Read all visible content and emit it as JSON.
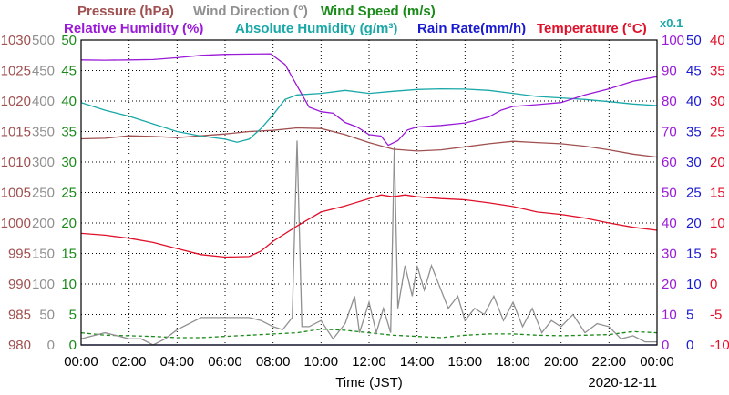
{
  "chart_data": {
    "type": "line",
    "titles": {
      "row1": [
        {
          "text": "Pressure (hPa)",
          "color": "#a05050"
        },
        {
          "text": "Wind Direction (°)",
          "color": "#909090"
        },
        {
          "text": "Wind Speed (m/s)",
          "color": "#1a8a1a"
        }
      ],
      "row2": [
        {
          "text": "Relative Humidity (%)",
          "color": "#9a1ad8"
        },
        {
          "text": "Absolute Humidity (g/m³)",
          "color": "#1aa8a8"
        },
        {
          "text": "Rain Rate(mm/h)",
          "color": "#1a1ad0"
        },
        {
          "text": "Temperature (°C)",
          "color": "#e0102a"
        }
      ],
      "multiplier": {
        "text": "x0.1",
        "color": "#1aa8a8"
      }
    },
    "xlabel": "Time (JST)",
    "date": "2020-12-11",
    "x_ticks": [
      "00:00",
      "02:00",
      "04:00",
      "06:00",
      "08:00",
      "10:00",
      "12:00",
      "14:00",
      "16:00",
      "18:00",
      "20:00",
      "22:00",
      "00:00"
    ],
    "axes": {
      "pressure": {
        "color": "#a05050",
        "range": [
          980,
          1030
        ],
        "ticks": [
          "1030",
          "1025",
          "1020",
          "1015",
          "1010",
          "1005",
          "1000",
          "995",
          "990",
          "985",
          "980"
        ]
      },
      "wind_direction": {
        "color": "#909090",
        "range": [
          0,
          500
        ],
        "ticks": [
          "500",
          "450",
          "400",
          "350",
          "300",
          "250",
          "200",
          "150",
          "100",
          "50",
          "0"
        ]
      },
      "wind_speed": {
        "color": "#1a8a1a",
        "range": [
          0,
          50
        ],
        "ticks": [
          "50",
          "45",
          "40",
          "35",
          "30",
          "25",
          "20",
          "15",
          "10",
          "5",
          "0"
        ]
      },
      "relative_humidity": {
        "color": "#9a1ad8",
        "range": [
          0,
          100
        ],
        "ticks": [
          "100",
          "90",
          "80",
          "70",
          "60",
          "50",
          "40",
          "30",
          "20",
          "10",
          "0"
        ]
      },
      "rain_rate": {
        "color": "#1a1ad0",
        "range": [
          0,
          50
        ],
        "ticks": [
          "50",
          "45",
          "40",
          "35",
          "30",
          "25",
          "20",
          "15",
          "10",
          "5",
          "0"
        ]
      },
      "temperature": {
        "color": "#e0102a",
        "range": [
          -10,
          40
        ],
        "ticks": [
          "40",
          "35",
          "30",
          "25",
          "20",
          "15",
          "10",
          "5",
          "0",
          "-5",
          "-10"
        ]
      }
    },
    "series": [
      {
        "name": "Pressure (hPa)",
        "axis": "pressure",
        "color": "#a05050",
        "points": [
          [
            0,
            1013.8
          ],
          [
            1,
            1013.9
          ],
          [
            2,
            1014.3
          ],
          [
            3,
            1014.2
          ],
          [
            4,
            1014.0
          ],
          [
            5,
            1014.3
          ],
          [
            6,
            1014.6
          ],
          [
            7,
            1015.0
          ],
          [
            8,
            1015.2
          ],
          [
            9,
            1015.6
          ],
          [
            10,
            1015.5
          ],
          [
            11,
            1014.5
          ],
          [
            12,
            1013.2
          ],
          [
            13,
            1012.1
          ],
          [
            14,
            1011.8
          ],
          [
            15,
            1012.0
          ],
          [
            16,
            1012.5
          ],
          [
            17,
            1013.0
          ],
          [
            18,
            1013.4
          ],
          [
            19,
            1013.2
          ],
          [
            20,
            1013.0
          ],
          [
            21,
            1012.6
          ],
          [
            22,
            1012.0
          ],
          [
            23,
            1011.3
          ],
          [
            24,
            1010.8
          ]
        ]
      },
      {
        "name": "Relative Humidity (%)",
        "axis": "relative_humidity",
        "color": "#9a1ad8",
        "points": [
          [
            0,
            93.5
          ],
          [
            1,
            93.4
          ],
          [
            2,
            93.5
          ],
          [
            3,
            93.6
          ],
          [
            4,
            94.2
          ],
          [
            5,
            95.0
          ],
          [
            6,
            95.3
          ],
          [
            7,
            95.4
          ],
          [
            7.9,
            95.5
          ],
          [
            8.5,
            92.0
          ],
          [
            9,
            85.0
          ],
          [
            9.5,
            78.0
          ],
          [
            10,
            76.5
          ],
          [
            10.5,
            76.0
          ],
          [
            11,
            73.0
          ],
          [
            11.5,
            71.5
          ],
          [
            12,
            69.0
          ],
          [
            12.5,
            68.5
          ],
          [
            12.8,
            65.5
          ],
          [
            13.2,
            67.0
          ],
          [
            13.6,
            70.5
          ],
          [
            14,
            71.5
          ],
          [
            15,
            72.0
          ],
          [
            16,
            72.8
          ],
          [
            17,
            74.8
          ],
          [
            17.5,
            77.0
          ],
          [
            18,
            78.2
          ],
          [
            19,
            78.8
          ],
          [
            20,
            79.5
          ],
          [
            21,
            82.0
          ],
          [
            22,
            84.0
          ],
          [
            23,
            86.5
          ],
          [
            24,
            88.0
          ]
        ]
      },
      {
        "name": "Absolute Humidity (g/m³)",
        "axis": "relative_humidity",
        "color": "#1aa8a8",
        "points": [
          [
            0,
            79.5
          ],
          [
            1,
            77.0
          ],
          [
            2,
            75.0
          ],
          [
            3,
            72.5
          ],
          [
            4,
            70.0
          ],
          [
            5,
            68.5
          ],
          [
            6,
            67.5
          ],
          [
            6.5,
            66.5
          ],
          [
            7,
            67.5
          ],
          [
            7.5,
            71.0
          ],
          [
            8,
            75.5
          ],
          [
            8.5,
            80.5
          ],
          [
            9,
            82.0
          ],
          [
            10,
            82.5
          ],
          [
            11,
            83.5
          ],
          [
            12,
            82.5
          ],
          [
            13,
            83.2
          ],
          [
            14,
            83.8
          ],
          [
            15,
            84.0
          ],
          [
            16,
            83.9
          ],
          [
            17,
            83.5
          ],
          [
            18,
            82.5
          ],
          [
            19,
            81.5
          ],
          [
            20,
            81.0
          ],
          [
            21,
            80.5
          ],
          [
            22,
            79.8
          ],
          [
            23,
            79.0
          ],
          [
            24,
            78.5
          ]
        ]
      },
      {
        "name": "Temperature (°C)",
        "axis": "temperature",
        "color": "#e0102a",
        "points": [
          [
            0,
            8.3
          ],
          [
            1,
            8.0
          ],
          [
            2,
            7.5
          ],
          [
            3,
            6.8
          ],
          [
            4,
            5.8
          ],
          [
            5,
            4.8
          ],
          [
            6,
            4.4
          ],
          [
            7,
            4.5
          ],
          [
            7.5,
            5.4
          ],
          [
            8,
            7.0
          ],
          [
            9,
            9.5
          ],
          [
            10,
            11.8
          ],
          [
            11,
            12.8
          ],
          [
            12,
            14.0
          ],
          [
            12.5,
            14.6
          ],
          [
            13,
            14.3
          ],
          [
            13.5,
            14.6
          ],
          [
            14,
            14.3
          ],
          [
            15,
            14.0
          ],
          [
            16,
            13.8
          ],
          [
            17,
            13.3
          ],
          [
            18,
            12.7
          ],
          [
            19,
            11.8
          ],
          [
            20,
            11.4
          ],
          [
            21,
            10.8
          ],
          [
            22,
            10.0
          ],
          [
            23,
            9.3
          ],
          [
            24,
            8.8
          ]
        ]
      },
      {
        "name": "Wind Direction (°)",
        "axis": "wind_direction",
        "color": "#909090",
        "points": [
          [
            0,
            10
          ],
          [
            0.5,
            15
          ],
          [
            1,
            20
          ],
          [
            1.5,
            15
          ],
          [
            2,
            10
          ],
          [
            2.5,
            10
          ],
          [
            3,
            0
          ],
          [
            3.5,
            10
          ],
          [
            4,
            25
          ],
          [
            5,
            45
          ],
          [
            6,
            45
          ],
          [
            7,
            45
          ],
          [
            7.5,
            40
          ],
          [
            8,
            30
          ],
          [
            8.4,
            25
          ],
          [
            8.8,
            45
          ],
          [
            9,
            335
          ],
          [
            9.2,
            30
          ],
          [
            9.5,
            30
          ],
          [
            10,
            40
          ],
          [
            10.5,
            10
          ],
          [
            11,
            35
          ],
          [
            11.4,
            80
          ],
          [
            11.6,
            20
          ],
          [
            12,
            70
          ],
          [
            12.3,
            20
          ],
          [
            12.6,
            60
          ],
          [
            12.9,
            20
          ],
          [
            13.05,
            325
          ],
          [
            13.2,
            60
          ],
          [
            13.5,
            130
          ],
          [
            13.8,
            80
          ],
          [
            14,
            130
          ],
          [
            14.3,
            90
          ],
          [
            14.6,
            130
          ],
          [
            15,
            90
          ],
          [
            15.3,
            60
          ],
          [
            15.7,
            80
          ],
          [
            16,
            40
          ],
          [
            16.4,
            60
          ],
          [
            16.8,
            50
          ],
          [
            17.2,
            80
          ],
          [
            17.6,
            40
          ],
          [
            18,
            70
          ],
          [
            18.4,
            30
          ],
          [
            18.8,
            60
          ],
          [
            19.2,
            20
          ],
          [
            19.6,
            40
          ],
          [
            20,
            30
          ],
          [
            20.5,
            50
          ],
          [
            21,
            20
          ],
          [
            21.5,
            35
          ],
          [
            22,
            30
          ],
          [
            22.5,
            10
          ],
          [
            23,
            15
          ],
          [
            23.5,
            5
          ],
          [
            24,
            5
          ]
        ]
      },
      {
        "name": "Wind Speed (m/s)",
        "axis": "wind_speed",
        "color": "#1a8a1a",
        "dashed": true,
        "points": [
          [
            0,
            2
          ],
          [
            1,
            1.6
          ],
          [
            2,
            1.5
          ],
          [
            3,
            1.4
          ],
          [
            4,
            1.2
          ],
          [
            5,
            1.2
          ],
          [
            6,
            1.4
          ],
          [
            7,
            1.6
          ],
          [
            8,
            1.8
          ],
          [
            9,
            2.0
          ],
          [
            10,
            2.6
          ],
          [
            11,
            2.4
          ],
          [
            12,
            2.0
          ],
          [
            13,
            1.6
          ],
          [
            14,
            1.4
          ],
          [
            15,
            1.2
          ],
          [
            16,
            1.6
          ],
          [
            17,
            1.8
          ],
          [
            18,
            1.8
          ],
          [
            19,
            1.6
          ],
          [
            20,
            1.5
          ],
          [
            21,
            1.6
          ],
          [
            22,
            1.7
          ],
          [
            23,
            2.2
          ],
          [
            24,
            2.0
          ]
        ]
      },
      {
        "name": "Rain Rate(mm/h)",
        "axis": "rain_rate",
        "color": "#1a1ad0",
        "points": [
          [
            0,
            0
          ],
          [
            24,
            0
          ]
        ]
      }
    ]
  }
}
